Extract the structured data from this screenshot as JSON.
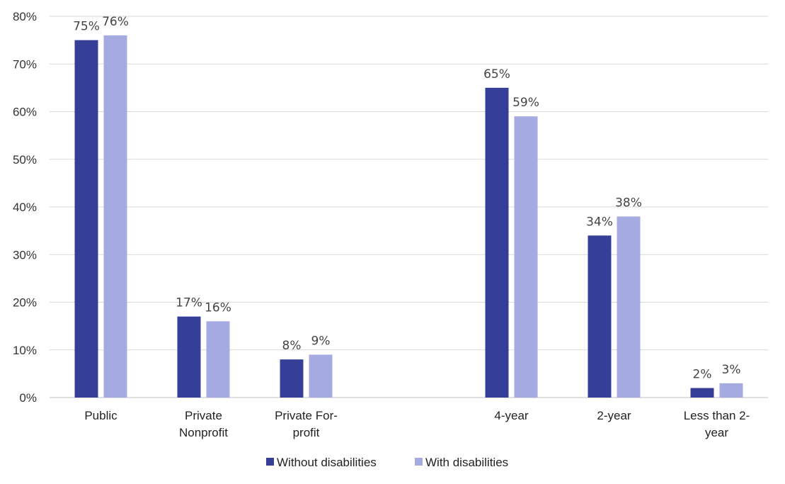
{
  "chart_data": {
    "type": "bar",
    "title": "",
    "xlabel": "",
    "ylabel": "",
    "ylim": [
      0,
      80
    ],
    "yticks": [
      0,
      10,
      20,
      30,
      40,
      50,
      60,
      70,
      80
    ],
    "ytick_labels": [
      "0%",
      "10%",
      "20%",
      "30%",
      "40%",
      "50%",
      "60%",
      "70%",
      "80%"
    ],
    "grid": true,
    "legend_position": "bottom-center",
    "categories": [
      [
        "Public"
      ],
      [
        "Private",
        "Nonprofit"
      ],
      [
        "Private For-",
        "profit"
      ],
      null,
      [
        "4-year"
      ],
      [
        "2-year"
      ],
      [
        "Less than 2-",
        "year"
      ]
    ],
    "series": [
      {
        "name": "Without disabilities",
        "color": "#363f98",
        "values": [
          75,
          17,
          8,
          null,
          65,
          34,
          2
        ],
        "labels": [
          "75%",
          "17%",
          "8%",
          null,
          "65%",
          "34%",
          "2%"
        ]
      },
      {
        "name": "With disabilities",
        "color": "#a5aae0",
        "values": [
          76,
          16,
          9,
          null,
          59,
          38,
          3
        ],
        "labels": [
          "76%",
          "16%",
          "9%",
          null,
          "59%",
          "38%",
          "3%"
        ]
      }
    ]
  }
}
